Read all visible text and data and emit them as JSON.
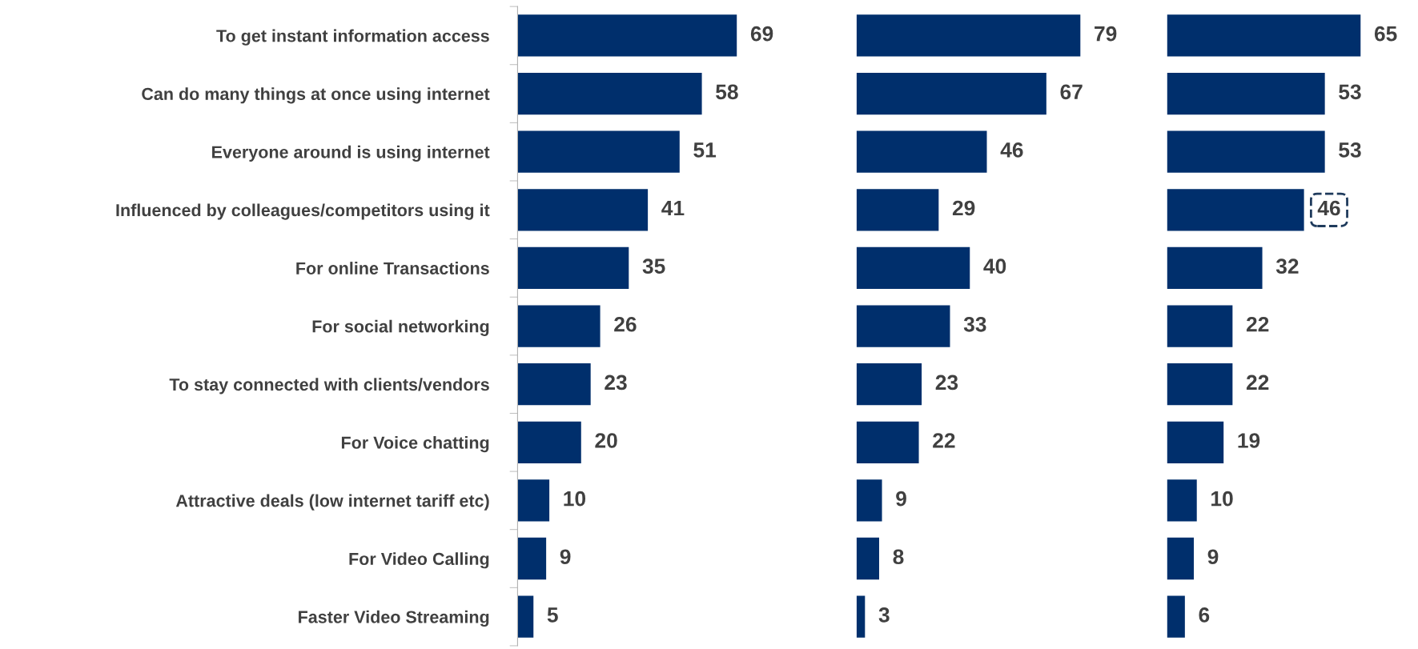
{
  "chart_data": [
    {
      "type": "bar",
      "orientation": "horizontal",
      "categories": [
        "To get instant information access",
        "Can do many things at once using internet",
        "Everyone around is using internet",
        "Influenced by colleagues/competitors using it",
        "For online Transactions",
        "For social networking",
        "To stay connected with clients/vendors",
        "For Voice chatting",
        "Attractive deals (low internet tariff etc)",
        "For Video Calling",
        "Faster Video Streaming"
      ],
      "values": [
        69,
        58,
        51,
        41,
        35,
        26,
        23,
        20,
        10,
        9,
        5
      ],
      "color": "#002f6c",
      "data_labels": true,
      "grid": false,
      "tick_labels": "y"
    },
    {
      "type": "bar",
      "orientation": "horizontal",
      "categories": [
        "To get instant information access",
        "Can do many things at once using internet",
        "Everyone around is using internet",
        "Influenced by colleagues/competitors using it",
        "For online Transactions",
        "For social networking",
        "To stay connected with clients/vendors",
        "For Voice chatting",
        "Attractive deals (low internet tariff etc)",
        "For Video Calling",
        "Faster Video Streaming"
      ],
      "values": [
        79,
        67,
        46,
        29,
        40,
        33,
        23,
        22,
        9,
        8,
        3
      ],
      "color": "#002f6c",
      "data_labels": true,
      "grid": false,
      "tick_labels": false
    },
    {
      "type": "bar",
      "orientation": "horizontal",
      "categories": [
        "To get instant information access",
        "Can do many things at once using internet",
        "Everyone around is using internet",
        "Influenced by colleagues/competitors using it",
        "For online Transactions",
        "For social networking",
        "To stay connected with clients/vendors",
        "For Voice chatting",
        "Attractive deals (low internet tariff etc)",
        "For Video Calling",
        "Faster Video Streaming"
      ],
      "values": [
        65,
        53,
        53,
        46,
        32,
        22,
        22,
        19,
        10,
        9,
        6
      ],
      "color": "#002f6c",
      "value_labels": [
        "65",
        "53",
        "53",
        null,
        "32",
        "22",
        "22",
        "19",
        "10",
        "9",
        "6"
      ],
      "grid": false,
      "tick_labels": false,
      "annotations": [
        {
          "text": "46",
          "x": 46,
          "y": "Influenced by colleagues/competitors using it"
        }
      ]
    }
  ]
}
